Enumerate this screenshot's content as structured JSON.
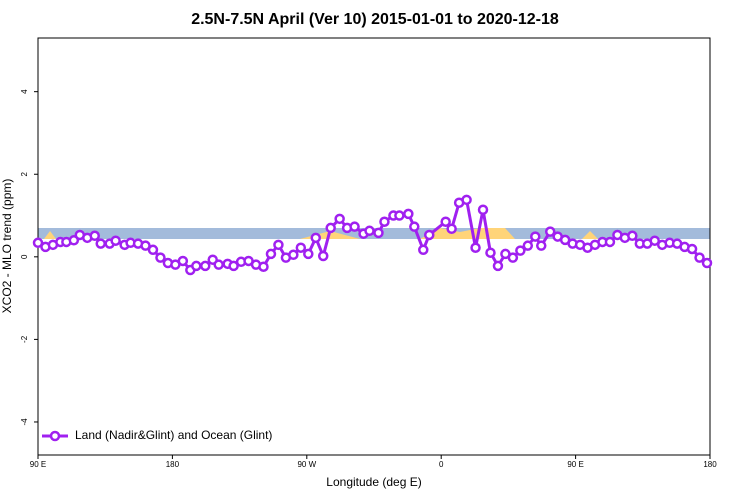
{
  "chart_data": {
    "type": "line",
    "title": "2.5N-7.5N April (Ver 10)   2015-01-01 to 2020-12-18",
    "x_label": "Longitude (deg E)",
    "y_label": "XCO2 - MLO trend (ppm)",
    "xlim": [
      90,
      540
    ],
    "ylim": [
      -4.8,
      5.3
    ],
    "xticks": [
      {
        "value": 90,
        "label": "90 E"
      },
      {
        "value": 180,
        "label": "180"
      },
      {
        "value": 270,
        "label": "90 W"
      },
      {
        "value": 360,
        "label": "0"
      },
      {
        "value": 450,
        "label": "90 E"
      },
      {
        "value": 540,
        "label": "180"
      }
    ],
    "yticks": [
      -4,
      -2,
      0,
      2,
      4
    ],
    "legend": "bottomleft",
    "x": [
      90,
      95,
      100,
      105,
      109,
      114,
      118,
      123,
      128,
      132,
      138,
      142,
      148,
      152,
      157,
      162,
      167,
      172,
      177,
      182,
      187,
      192,
      196,
      202,
      207,
      211,
      217,
      221,
      226,
      231,
      236,
      241,
      246,
      251,
      256,
      261,
      266,
      271,
      276,
      281,
      286,
      292,
      297,
      302,
      308,
      312,
      318,
      322,
      328,
      332,
      338,
      342,
      348,
      352,
      363,
      367,
      372,
      377,
      383,
      388,
      393,
      398,
      403,
      408,
      413,
      418,
      423,
      427,
      433,
      438,
      443,
      448,
      453,
      458,
      463,
      468,
      473,
      478,
      483,
      488,
      493,
      498,
      503,
      508,
      513,
      518,
      523,
      528,
      533,
      538
    ],
    "series": [
      {
        "name": "Land (Nadir&Glint) and Ocean (Glint)",
        "color": "#a020f0",
        "values": [
          0.34,
          0.24,
          0.29,
          0.36,
          0.36,
          0.4,
          0.53,
          0.46,
          0.51,
          0.32,
          0.32,
          0.39,
          0.29,
          0.34,
          0.32,
          0.27,
          0.17,
          -0.02,
          -0.15,
          -0.19,
          -0.1,
          -0.32,
          -0.22,
          -0.22,
          -0.07,
          -0.19,
          -0.17,
          -0.22,
          -0.12,
          -0.1,
          -0.19,
          -0.24,
          0.07,
          0.29,
          -0.02,
          0.05,
          0.22,
          0.07,
          0.46,
          0.02,
          0.7,
          0.92,
          0.7,
          0.73,
          0.56,
          0.63,
          0.58,
          0.85,
          1.0,
          1.0,
          1.04,
          0.73,
          0.17,
          0.53,
          0.85,
          0.68,
          1.31,
          1.38,
          0.22,
          1.14,
          0.1,
          -0.22,
          0.07,
          -0.02,
          0.15,
          0.27,
          0.49,
          0.27,
          0.61,
          0.49,
          0.41,
          0.32,
          0.29,
          0.22,
          0.29,
          0.36,
          0.36,
          0.53,
          0.46,
          0.51,
          0.32,
          0.32,
          0.39,
          0.29,
          0.34,
          0.32,
          0.24,
          0.19,
          -0.02,
          -0.15
        ]
      }
    ]
  }
}
